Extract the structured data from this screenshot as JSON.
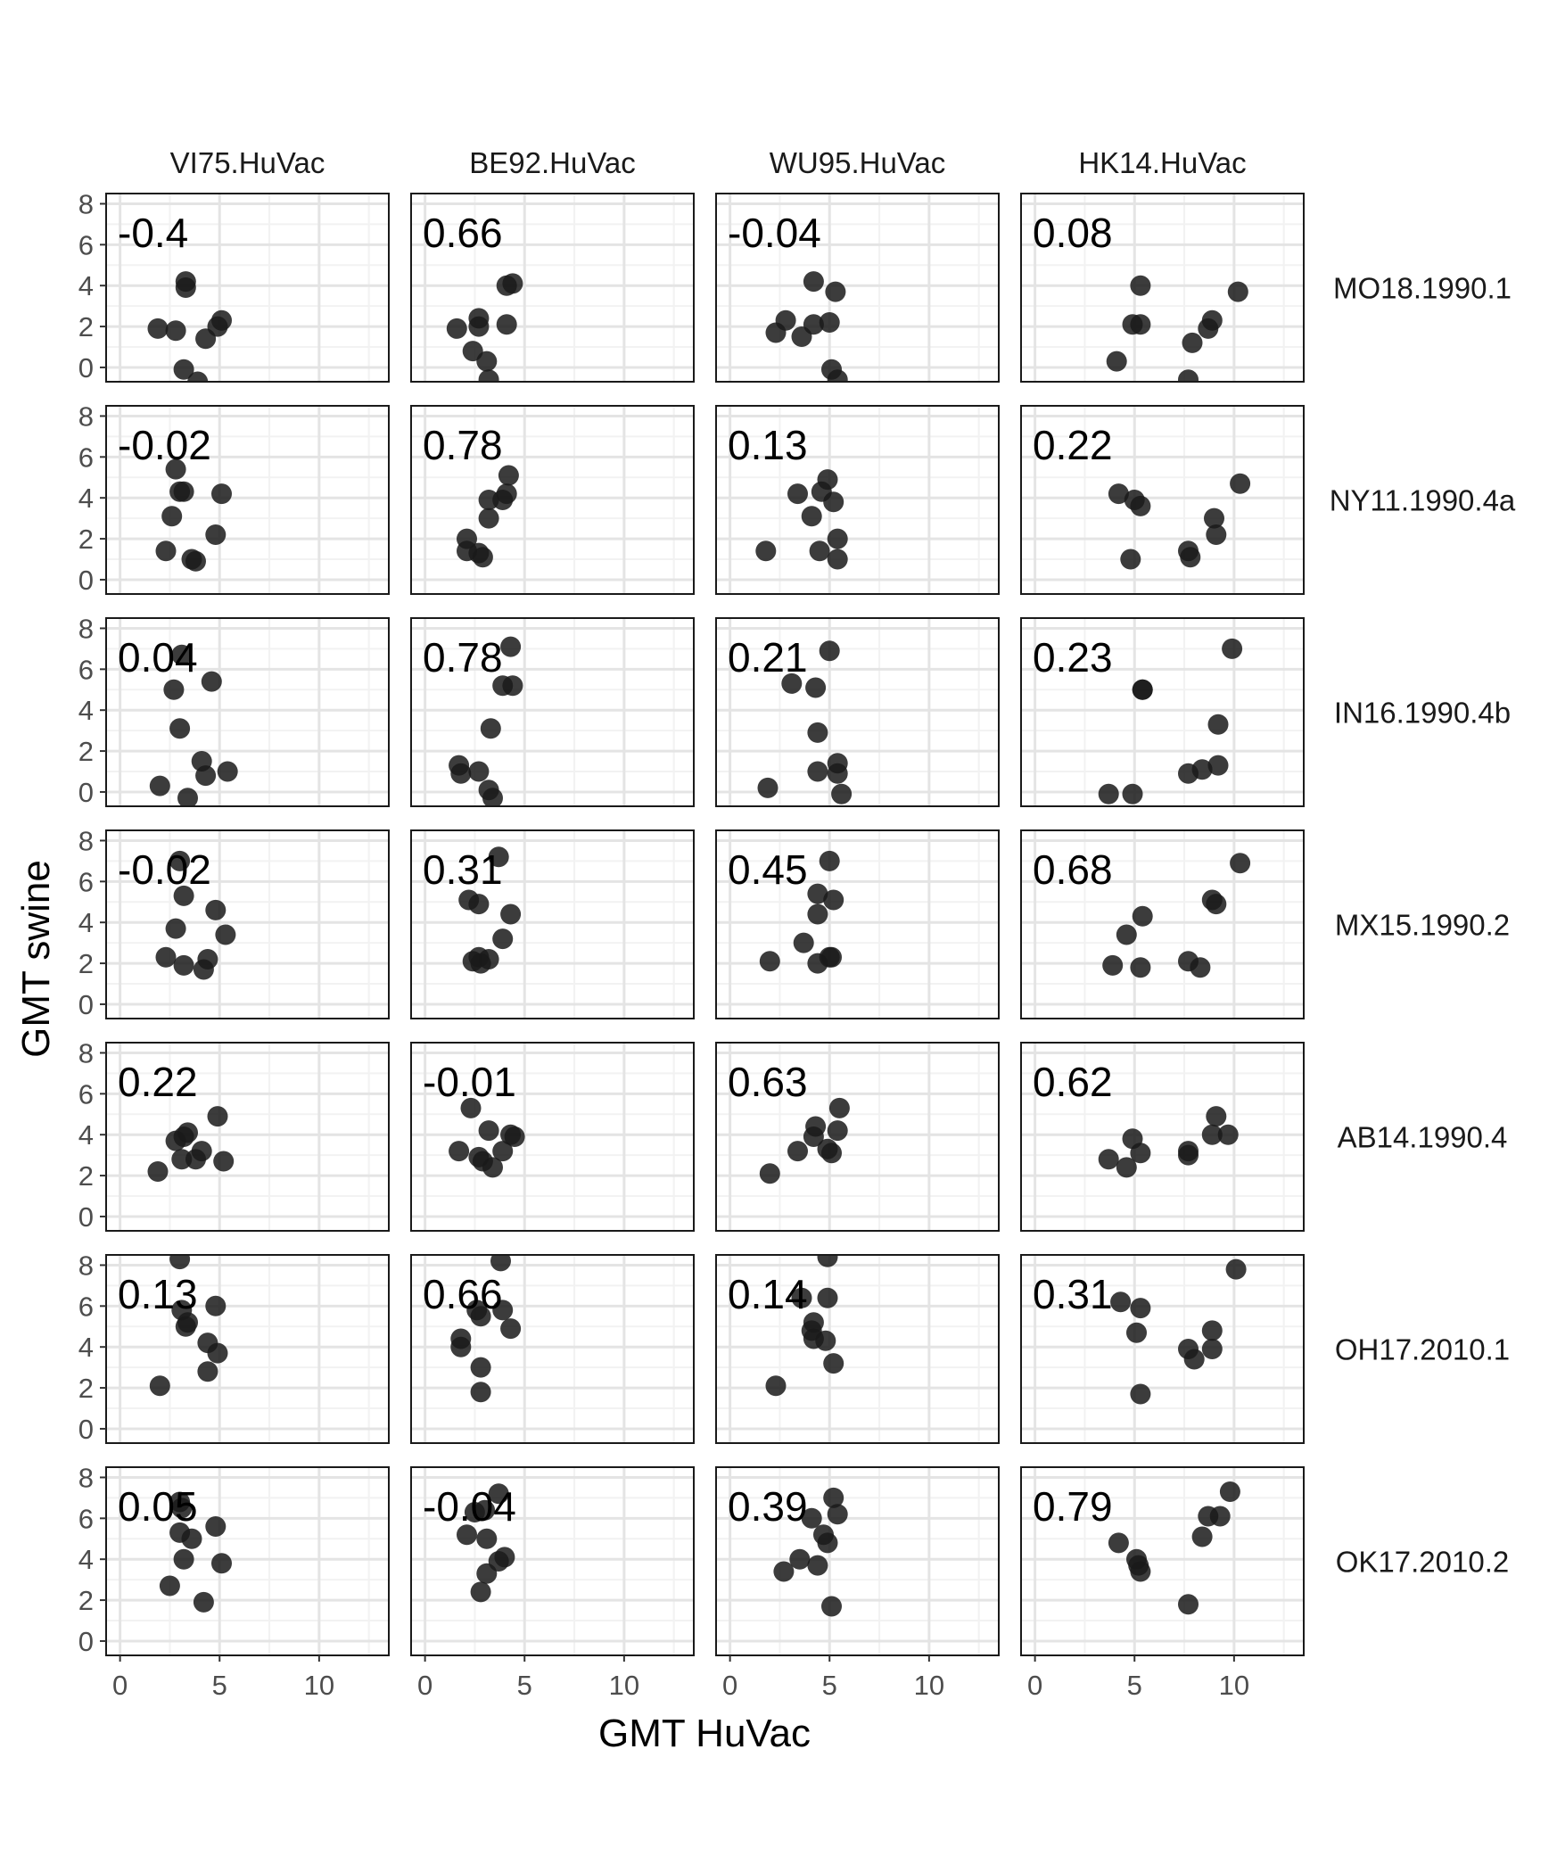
{
  "chart_data": {
    "type": "scatter",
    "layout": "facet-grid",
    "xlabel": "GMT HuVac",
    "ylabel": "GMT swine",
    "xlim": [
      -0.7,
      13.5
    ],
    "ylim": [
      -0.7,
      8.5
    ],
    "x_ticks": [
      "0",
      "5",
      "10"
    ],
    "y_ticks": [
      "0",
      "2",
      "4",
      "6",
      "8"
    ],
    "grid": true,
    "point_color": "#1a1a1a",
    "columns": [
      "VI75.HuVac",
      "BE92.HuVac",
      "WU95.HuVac",
      "HK14.HuVac"
    ],
    "rows": [
      "MO18.1990.1",
      "NY11.1990.4a",
      "IN16.1990.4b",
      "MX15.1990.2",
      "AB14.1990.4",
      "OH17.2010.1",
      "OK17.2010.2"
    ],
    "panels": [
      [
        {
          "r": "-0.4",
          "points": [
            [
              1.9,
              1.9
            ],
            [
              2.8,
              1.8
            ],
            [
              3.3,
              4.2
            ],
            [
              3.3,
              3.9
            ],
            [
              3.2,
              -0.1
            ],
            [
              3.9,
              -0.7
            ],
            [
              4.3,
              1.4
            ],
            [
              4.9,
              2.0
            ],
            [
              5.1,
              2.3
            ]
          ]
        },
        {
          "r": "0.66",
          "points": [
            [
              1.6,
              1.9
            ],
            [
              2.4,
              0.8
            ],
            [
              2.7,
              2.0
            ],
            [
              2.7,
              2.4
            ],
            [
              3.1,
              0.3
            ],
            [
              3.2,
              -0.6
            ],
            [
              4.1,
              2.1
            ],
            [
              4.1,
              4.0
            ],
            [
              4.4,
              4.1
            ]
          ]
        },
        {
          "r": "-0.04",
          "points": [
            [
              2.3,
              1.7
            ],
            [
              2.8,
              2.3
            ],
            [
              3.6,
              1.5
            ],
            [
              4.2,
              2.1
            ],
            [
              4.2,
              4.2
            ],
            [
              5.0,
              2.2
            ],
            [
              5.1,
              -0.1
            ],
            [
              5.3,
              3.7
            ],
            [
              5.4,
              -0.6
            ]
          ]
        },
        {
          "r": "0.08",
          "points": [
            [
              4.1,
              0.3
            ],
            [
              4.9,
              2.1
            ],
            [
              5.3,
              4.0
            ],
            [
              5.3,
              2.1
            ],
            [
              7.7,
              -0.6
            ],
            [
              7.9,
              1.2
            ],
            [
              8.7,
              1.9
            ],
            [
              8.9,
              2.3
            ],
            [
              10.2,
              3.7
            ]
          ]
        }
      ],
      [
        {
          "r": "-0.02",
          "points": [
            [
              2.3,
              1.4
            ],
            [
              2.6,
              3.1
            ],
            [
              2.8,
              5.4
            ],
            [
              3.0,
              4.3
            ],
            [
              3.2,
              4.3
            ],
            [
              3.6,
              1.0
            ],
            [
              3.8,
              0.9
            ],
            [
              4.8,
              2.2
            ],
            [
              5.1,
              4.2
            ]
          ]
        },
        {
          "r": "0.78",
          "points": [
            [
              2.1,
              2.0
            ],
            [
              2.1,
              1.4
            ],
            [
              2.7,
              1.3
            ],
            [
              2.9,
              1.1
            ],
            [
              3.2,
              3.0
            ],
            [
              3.2,
              3.9
            ],
            [
              3.9,
              3.9
            ],
            [
              4.1,
              4.2
            ],
            [
              4.2,
              5.1
            ]
          ]
        },
        {
          "r": "0.13",
          "points": [
            [
              1.8,
              1.4
            ],
            [
              3.4,
              4.2
            ],
            [
              4.1,
              3.1
            ],
            [
              4.6,
              4.3
            ],
            [
              4.5,
              1.4
            ],
            [
              4.9,
              4.9
            ],
            [
              5.2,
              3.8
            ],
            [
              5.4,
              2.0
            ],
            [
              5.4,
              1.0
            ]
          ]
        },
        {
          "r": "0.22",
          "points": [
            [
              4.2,
              4.2
            ],
            [
              4.8,
              1.0
            ],
            [
              5.0,
              3.9
            ],
            [
              5.3,
              3.6
            ],
            [
              7.7,
              1.4
            ],
            [
              7.8,
              1.1
            ],
            [
              9.0,
              3.0
            ],
            [
              9.1,
              2.2
            ],
            [
              10.3,
              4.7
            ]
          ]
        }
      ],
      [
        {
          "r": "0.04",
          "points": [
            [
              2.0,
              0.3
            ],
            [
              2.7,
              5.0
            ],
            [
              3.1,
              6.7
            ],
            [
              3.0,
              3.1
            ],
            [
              3.4,
              -0.3
            ],
            [
              4.1,
              1.5
            ],
            [
              4.3,
              0.8
            ],
            [
              4.6,
              5.4
            ],
            [
              5.4,
              1.0
            ]
          ]
        },
        {
          "r": "0.78",
          "points": [
            [
              1.7,
              1.3
            ],
            [
              1.8,
              0.9
            ],
            [
              2.7,
              1.0
            ],
            [
              3.2,
              0.1
            ],
            [
              3.3,
              3.1
            ],
            [
              3.4,
              -0.3
            ],
            [
              3.9,
              5.2
            ],
            [
              4.3,
              7.1
            ],
            [
              4.4,
              5.2
            ]
          ]
        },
        {
          "r": "0.21",
          "points": [
            [
              1.9,
              0.2
            ],
            [
              3.1,
              5.3
            ],
            [
              4.3,
              5.1
            ],
            [
              4.4,
              2.9
            ],
            [
              4.4,
              1.0
            ],
            [
              5.0,
              6.9
            ],
            [
              5.4,
              1.4
            ],
            [
              5.4,
              0.9
            ],
            [
              5.6,
              -0.1
            ]
          ]
        },
        {
          "r": "0.23",
          "points": [
            [
              3.7,
              -0.1
            ],
            [
              4.9,
              -0.1
            ],
            [
              5.4,
              5.0
            ],
            [
              5.4,
              5.0
            ],
            [
              7.7,
              0.9
            ],
            [
              8.4,
              1.1
            ],
            [
              9.2,
              1.3
            ],
            [
              9.2,
              3.3
            ],
            [
              9.9,
              7.0
            ]
          ]
        }
      ],
      [
        {
          "r": "-0.02",
          "points": [
            [
              2.3,
              2.3
            ],
            [
              2.8,
              3.7
            ],
            [
              3.0,
              7.0
            ],
            [
              3.2,
              5.3
            ],
            [
              3.2,
              1.9
            ],
            [
              4.2,
              1.7
            ],
            [
              4.4,
              2.2
            ],
            [
              4.8,
              4.6
            ],
            [
              5.3,
              3.4
            ]
          ]
        },
        {
          "r": "0.31",
          "points": [
            [
              2.2,
              5.1
            ],
            [
              2.4,
              2.1
            ],
            [
              2.7,
              2.3
            ],
            [
              2.8,
              2.0
            ],
            [
              2.7,
              4.9
            ],
            [
              3.2,
              2.2
            ],
            [
              3.7,
              7.2
            ],
            [
              3.9,
              3.2
            ],
            [
              4.3,
              4.4
            ]
          ]
        },
        {
          "r": "0.45",
          "points": [
            [
              2.0,
              2.1
            ],
            [
              3.7,
              3.0
            ],
            [
              4.4,
              5.4
            ],
            [
              4.4,
              4.4
            ],
            [
              4.4,
              2.0
            ],
            [
              5.0,
              7.0
            ],
            [
              5.0,
              2.3
            ],
            [
              5.1,
              2.3
            ],
            [
              5.2,
              5.1
            ]
          ]
        },
        {
          "r": "0.68",
          "points": [
            [
              3.9,
              1.9
            ],
            [
              4.6,
              3.4
            ],
            [
              5.3,
              1.8
            ],
            [
              5.4,
              4.3
            ],
            [
              7.7,
              2.1
            ],
            [
              8.3,
              1.8
            ],
            [
              8.9,
              5.1
            ],
            [
              9.1,
              4.9
            ],
            [
              10.3,
              6.9
            ]
          ]
        }
      ],
      [
        {
          "r": "0.22",
          "points": [
            [
              1.9,
              2.2
            ],
            [
              2.8,
              3.7
            ],
            [
              3.1,
              2.8
            ],
            [
              3.2,
              3.9
            ],
            [
              3.4,
              4.1
            ],
            [
              3.8,
              2.8
            ],
            [
              4.1,
              3.2
            ],
            [
              4.9,
              4.9
            ],
            [
              5.2,
              2.7
            ]
          ]
        },
        {
          "r": "-0.01",
          "points": [
            [
              1.7,
              3.2
            ],
            [
              2.3,
              5.3
            ],
            [
              2.7,
              2.9
            ],
            [
              2.9,
              2.7
            ],
            [
              3.2,
              4.2
            ],
            [
              3.4,
              2.4
            ],
            [
              3.9,
              3.2
            ],
            [
              4.3,
              4.0
            ],
            [
              4.5,
              3.9
            ]
          ]
        },
        {
          "r": "0.63",
          "points": [
            [
              2.0,
              2.1
            ],
            [
              3.4,
              3.2
            ],
            [
              4.2,
              3.9
            ],
            [
              4.3,
              4.4
            ],
            [
              4.9,
              3.3
            ],
            [
              5.1,
              3.1
            ],
            [
              5.4,
              4.2
            ],
            [
              5.5,
              5.3
            ]
          ]
        },
        {
          "r": "0.62",
          "points": [
            [
              3.7,
              2.8
            ],
            [
              4.6,
              2.4
            ],
            [
              4.9,
              3.8
            ],
            [
              5.3,
              3.1
            ],
            [
              7.7,
              3.0
            ],
            [
              7.7,
              3.2
            ],
            [
              8.9,
              4.0
            ],
            [
              9.1,
              4.9
            ],
            [
              9.7,
              4.0
            ]
          ]
        }
      ],
      [
        {
          "r": "0.13",
          "points": [
            [
              2.0,
              2.1
            ],
            [
              3.0,
              8.3
            ],
            [
              3.1,
              5.8
            ],
            [
              3.3,
              5.0
            ],
            [
              3.4,
              5.2
            ],
            [
              4.4,
              2.8
            ],
            [
              4.4,
              4.2
            ],
            [
              4.8,
              6.0
            ],
            [
              4.9,
              3.7
            ]
          ]
        },
        {
          "r": "0.66",
          "points": [
            [
              1.8,
              4.4
            ],
            [
              1.8,
              4.0
            ],
            [
              2.6,
              5.8
            ],
            [
              2.8,
              5.5
            ],
            [
              2.8,
              3.0
            ],
            [
              2.8,
              1.8
            ],
            [
              3.8,
              8.2
            ],
            [
              3.9,
              5.8
            ],
            [
              4.3,
              4.9
            ]
          ]
        },
        {
          "r": "0.14",
          "points": [
            [
              2.3,
              2.1
            ],
            [
              3.6,
              6.4
            ],
            [
              4.2,
              5.2
            ],
            [
              4.1,
              4.8
            ],
            [
              4.2,
              4.4
            ],
            [
              4.8,
              4.3
            ],
            [
              4.9,
              6.4
            ],
            [
              4.9,
              8.4
            ],
            [
              5.2,
              3.2
            ]
          ]
        },
        {
          "r": "0.31",
          "points": [
            [
              4.3,
              6.2
            ],
            [
              5.1,
              4.7
            ],
            [
              5.3,
              1.7
            ],
            [
              5.3,
              5.9
            ],
            [
              7.7,
              3.9
            ],
            [
              8.0,
              3.4
            ],
            [
              8.9,
              3.9
            ],
            [
              8.9,
              4.8
            ],
            [
              10.1,
              7.8
            ]
          ]
        }
      ],
      [
        {
          "r": "0.05",
          "points": [
            [
              2.5,
              2.7
            ],
            [
              3.0,
              5.3
            ],
            [
              3.0,
              6.8
            ],
            [
              3.1,
              6.5
            ],
            [
              3.2,
              4.0
            ],
            [
              3.6,
              5.0
            ],
            [
              4.2,
              1.9
            ],
            [
              4.8,
              5.6
            ],
            [
              5.1,
              3.8
            ]
          ]
        },
        {
          "r": "-0.04",
          "points": [
            [
              2.1,
              5.2
            ],
            [
              2.5,
              6.3
            ],
            [
              2.8,
              2.4
            ],
            [
              3.0,
              6.4
            ],
            [
              3.1,
              5.0
            ],
            [
              3.1,
              3.3
            ],
            [
              3.7,
              7.2
            ],
            [
              3.7,
              3.9
            ],
            [
              4.0,
              4.1
            ]
          ]
        },
        {
          "r": "0.39",
          "points": [
            [
              2.7,
              3.4
            ],
            [
              3.5,
              4.0
            ],
            [
              4.1,
              6.0
            ],
            [
              4.4,
              3.7
            ],
            [
              4.7,
              5.2
            ],
            [
              4.9,
              4.8
            ],
            [
              5.1,
              1.7
            ],
            [
              5.2,
              7.0
            ],
            [
              5.4,
              6.2
            ]
          ]
        },
        {
          "r": "0.79",
          "points": [
            [
              4.2,
              4.8
            ],
            [
              5.1,
              4.0
            ],
            [
              5.2,
              3.7
            ],
            [
              5.3,
              3.4
            ],
            [
              7.7,
              1.8
            ],
            [
              8.4,
              5.1
            ],
            [
              8.7,
              6.1
            ],
            [
              9.3,
              6.1
            ],
            [
              9.8,
              7.3
            ]
          ]
        }
      ]
    ]
  }
}
